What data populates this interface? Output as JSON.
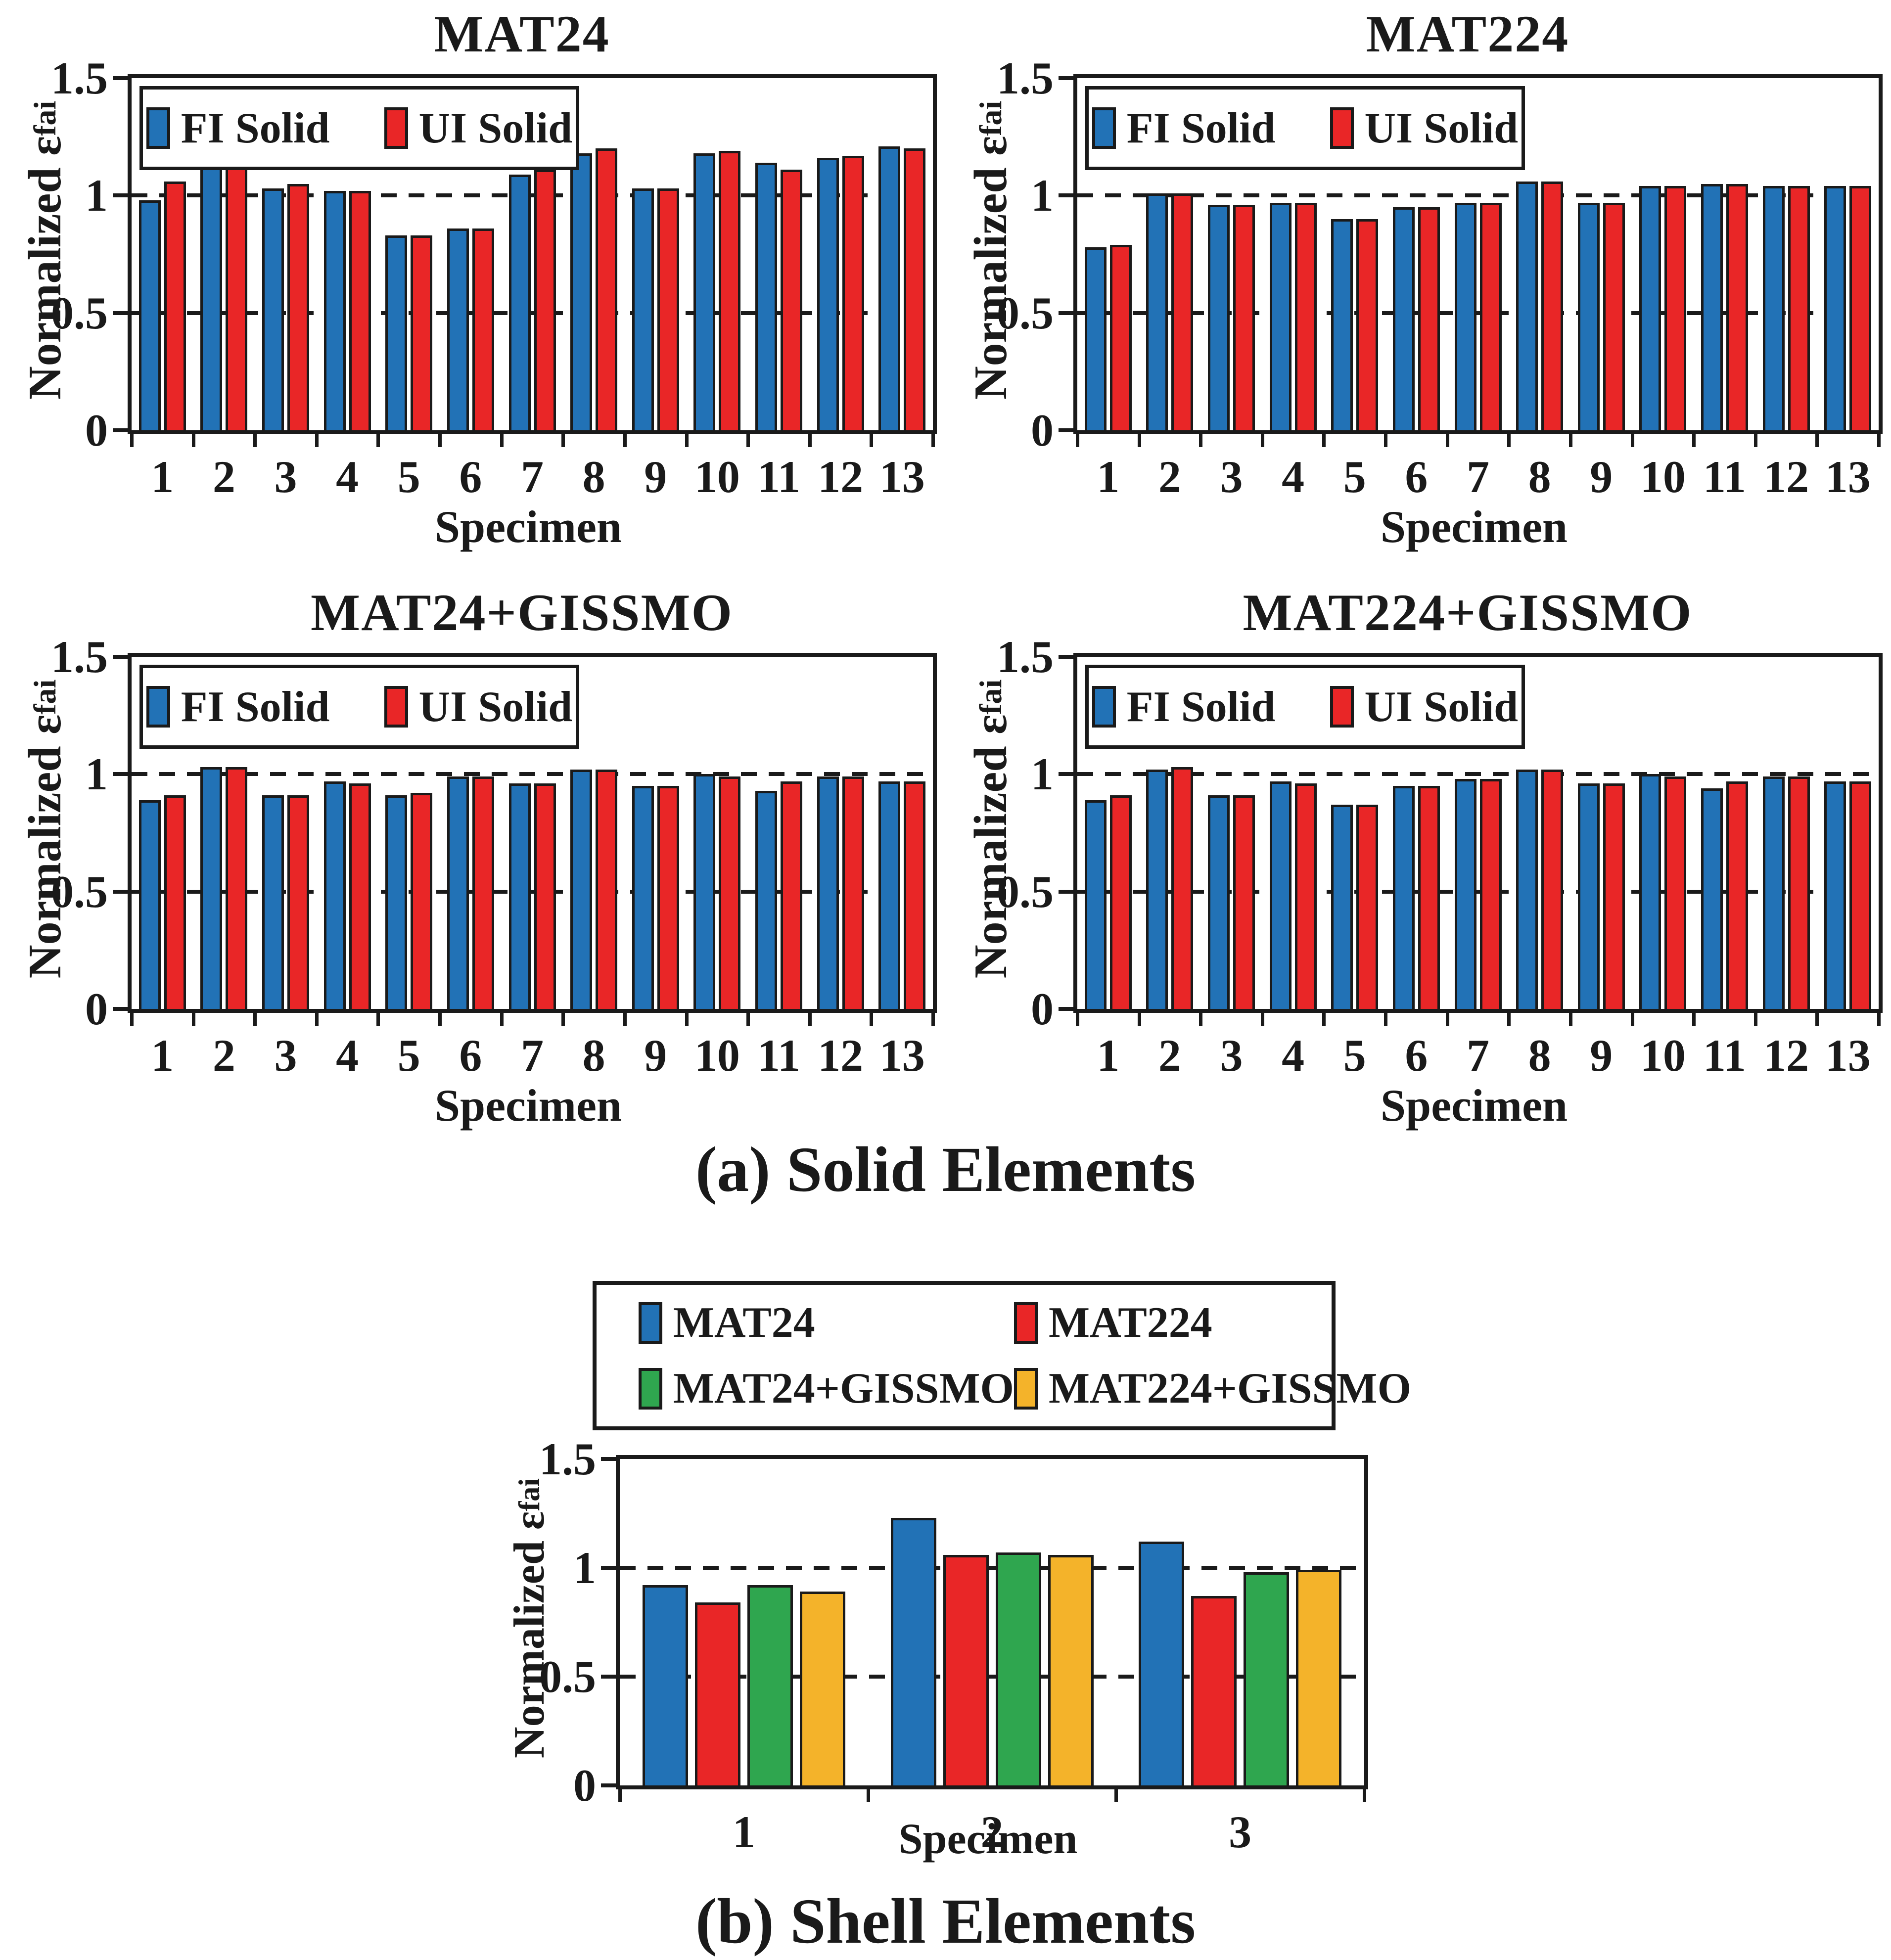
{
  "figure": {
    "captions": {
      "a": "(a) Solid Elements",
      "b": "(b) Shell Elements"
    }
  },
  "colors": {
    "blue": "#2272B6",
    "red": "#E92627",
    "green": "#2FA64F",
    "yellow": "#F4B32A",
    "ink": "#1A1A1A"
  },
  "chart_data": [
    {
      "id": "mat24-solid",
      "type": "bar",
      "title": "MAT24",
      "xlabel": "Specimen",
      "ylabel": "Normalized ε",
      "ylabel_sub": "fai",
      "ylim": [
        0,
        1.5
      ],
      "yticks": [
        0,
        0.5,
        1,
        1.5
      ],
      "grid_values": [
        0.5,
        1
      ],
      "grid_style": "dashed",
      "legend_position": "inside-top-left",
      "categories": [
        "1",
        "2",
        "3",
        "4",
        "5",
        "6",
        "7",
        "8",
        "9",
        "10",
        "11",
        "12",
        "13"
      ],
      "series": [
        {
          "name": "FI Solid",
          "color": "#2272B6",
          "values": [
            0.98,
            1.14,
            1.03,
            1.02,
            0.83,
            0.86,
            1.09,
            1.18,
            1.03,
            1.18,
            1.14,
            1.16,
            1.21
          ]
        },
        {
          "name": "UI Solid",
          "color": "#E92627",
          "values": [
            1.06,
            1.15,
            1.05,
            1.02,
            0.83,
            0.86,
            1.11,
            1.2,
            1.03,
            1.19,
            1.11,
            1.17,
            1.2
          ]
        }
      ]
    },
    {
      "id": "mat224-solid",
      "type": "bar",
      "title": "MAT224",
      "xlabel": "Specimen",
      "ylabel": "Normalized ε",
      "ylabel_sub": "fai",
      "ylim": [
        0,
        1.5
      ],
      "yticks": [
        0,
        0.5,
        1,
        1.5
      ],
      "grid_values": [
        0.5,
        1
      ],
      "grid_style": "dashed",
      "legend_position": "inside-top-left",
      "categories": [
        "1",
        "2",
        "3",
        "4",
        "5",
        "6",
        "7",
        "8",
        "9",
        "10",
        "11",
        "12",
        "13"
      ],
      "series": [
        {
          "name": "FI Solid",
          "color": "#2272B6",
          "values": [
            0.78,
            1.01,
            0.96,
            0.97,
            0.9,
            0.95,
            0.97,
            1.06,
            0.97,
            1.04,
            1.05,
            1.04,
            1.04
          ]
        },
        {
          "name": "UI Solid",
          "color": "#E92627",
          "values": [
            0.79,
            1.01,
            0.96,
            0.97,
            0.9,
            0.95,
            0.97,
            1.06,
            0.97,
            1.04,
            1.05,
            1.04,
            1.04
          ]
        }
      ]
    },
    {
      "id": "mat24-gissmo-solid",
      "type": "bar",
      "title": "MAT24+GISSMO",
      "xlabel": "Specimen",
      "ylabel": "Normalized ε",
      "ylabel_sub": "fai",
      "ylim": [
        0,
        1.5
      ],
      "yticks": [
        0,
        0.5,
        1,
        1.5
      ],
      "grid_values": [
        0.5,
        1
      ],
      "grid_style": "dashed",
      "legend_position": "inside-top-left",
      "categories": [
        "1",
        "2",
        "3",
        "4",
        "5",
        "6",
        "7",
        "8",
        "9",
        "10",
        "11",
        "12",
        "13"
      ],
      "series": [
        {
          "name": "FI Solid",
          "color": "#2272B6",
          "values": [
            0.89,
            1.03,
            0.91,
            0.97,
            0.91,
            0.99,
            0.96,
            1.02,
            0.95,
            1.0,
            0.93,
            0.99,
            0.97
          ]
        },
        {
          "name": "UI Solid",
          "color": "#E92627",
          "values": [
            0.91,
            1.03,
            0.91,
            0.96,
            0.92,
            0.99,
            0.96,
            1.02,
            0.95,
            0.99,
            0.97,
            0.99,
            0.97
          ]
        }
      ]
    },
    {
      "id": "mat224-gissmo-solid",
      "type": "bar",
      "title": "MAT224+GISSMO",
      "xlabel": "Specimen",
      "ylabel": "Normalized ε",
      "ylabel_sub": "fai",
      "ylim": [
        0,
        1.5
      ],
      "yticks": [
        0,
        0.5,
        1,
        1.5
      ],
      "grid_values": [
        0.5,
        1
      ],
      "grid_style": "dashed",
      "legend_position": "inside-top-left",
      "categories": [
        "1",
        "2",
        "3",
        "4",
        "5",
        "6",
        "7",
        "8",
        "9",
        "10",
        "11",
        "12",
        "13"
      ],
      "series": [
        {
          "name": "FI Solid",
          "color": "#2272B6",
          "values": [
            0.89,
            1.02,
            0.91,
            0.97,
            0.87,
            0.95,
            0.98,
            1.02,
            0.96,
            1.0,
            0.94,
            0.99,
            0.97
          ]
        },
        {
          "name": "UI Solid",
          "color": "#E92627",
          "values": [
            0.91,
            1.03,
            0.91,
            0.96,
            0.87,
            0.95,
            0.98,
            1.02,
            0.96,
            0.99,
            0.97,
            0.99,
            0.97
          ]
        }
      ]
    },
    {
      "id": "shell",
      "type": "bar",
      "title": "",
      "xlabel": "Specimen",
      "ylabel": "Normalized ε",
      "ylabel_sub": "fai",
      "ylim": [
        0,
        1.5
      ],
      "yticks": [
        0,
        0.5,
        1,
        1.5
      ],
      "grid_values": [
        0.5,
        1
      ],
      "grid_style": "dashed",
      "legend_position": "above",
      "categories": [
        "1",
        "2",
        "3"
      ],
      "series": [
        {
          "name": "MAT24",
          "color": "#2272B6",
          "values": [
            0.92,
            1.23,
            1.12
          ]
        },
        {
          "name": "MAT224",
          "color": "#E92627",
          "values": [
            0.84,
            1.06,
            0.87
          ]
        },
        {
          "name": "MAT24+GISSMO",
          "color": "#2FA64F",
          "values": [
            0.92,
            1.07,
            0.98
          ]
        },
        {
          "name": "MAT224+GISSMO",
          "color": "#F4B32A",
          "values": [
            0.89,
            1.06,
            0.99
          ]
        }
      ]
    }
  ]
}
